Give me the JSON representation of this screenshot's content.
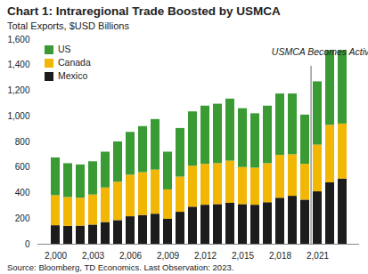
{
  "chart_data": {
    "type": "bar",
    "title": "Chart 1: Intraregional Trade Boosted by USMCA",
    "subtitle": "Total Exports, $USD Billions",
    "source": "Source: Bloomberg, TD Economics.  Last Observation:  2023.",
    "stacked": true,
    "legend": "top-left",
    "grid": false,
    "categories": [
      2000,
      null,
      null,
      2003,
      null,
      null,
      2006,
      null,
      null,
      2009,
      null,
      null,
      2012,
      null,
      null,
      2015,
      null,
      null,
      2018,
      null,
      null,
      2021,
      null,
      null
    ],
    "series": [
      {
        "name": "Mexico",
        "color": "#1c1c1c",
        "values": [
          145,
          140,
          142,
          150,
          170,
          185,
          215,
          225,
          235,
          195,
          250,
          290,
          305,
          310,
          320,
          310,
          305,
          325,
          360,
          375,
          345,
          410,
          480,
          510
        ]
      },
      {
        "name": "Canada",
        "color": "#f2b705",
        "values": [
          235,
          225,
          218,
          235,
          270,
          300,
          325,
          335,
          345,
          230,
          275,
          320,
          320,
          320,
          330,
          290,
          290,
          305,
          335,
          325,
          280,
          365,
          450,
          430
        ]
      },
      {
        "name": "US",
        "color": "#3a9b35",
        "values": [
          295,
          265,
          260,
          260,
          280,
          315,
          335,
          360,
          395,
          295,
          380,
          425,
          455,
          465,
          485,
          460,
          425,
          450,
          480,
          475,
          385,
          495,
          585,
          575
        ]
      }
    ],
    "ylim": [
      0,
      1600
    ],
    "yticks": [
      0,
      200,
      400,
      600,
      800,
      {
        "value": 1000,
        "label": "1,000"
      },
      {
        "value": 1200,
        "label": "1,200"
      },
      {
        "value": 1400,
        "label": "1,400"
      },
      {
        "value": 1600,
        "label": "1,600"
      }
    ],
    "annotations": [
      {
        "text": "USMCA Becomes Active",
        "category": 2021
      }
    ]
  }
}
